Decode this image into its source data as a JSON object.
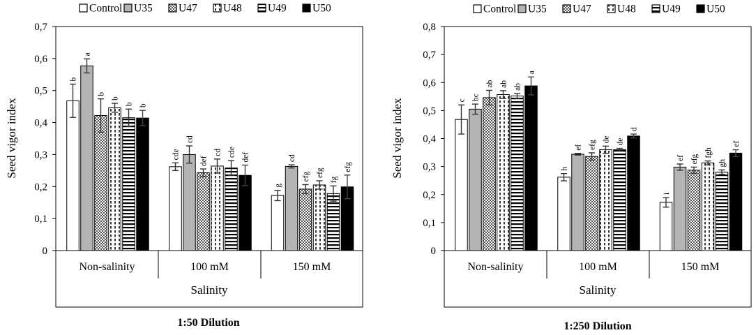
{
  "colors": {
    "Control": "#ffffff",
    "U35": "#b4b4b4",
    "U47": "#7a7a7a",
    "U48": "#ffffff",
    "U49": "#ffffff",
    "U50": "#000000"
  },
  "chart_data": [
    {
      "type": "bar",
      "title": "1:50 Dilution",
      "xlabel": "Salinity",
      "ylabel": "Seed vigor index",
      "ylim": [
        0,
        0.7
      ],
      "yticks": [
        "0",
        "0,1",
        "0,2",
        "0,3",
        "0,4",
        "0,5",
        "0,6",
        "0,7"
      ],
      "categories": [
        "Non-salinity",
        "100 mM",
        "150  mM"
      ],
      "legend": [
        "Control",
        "U35",
        "U47",
        "U48",
        "U49",
        "U50"
      ],
      "series": [
        {
          "name": "Control",
          "values": [
            0.468,
            0.262,
            0.172
          ],
          "errors": [
            0.052,
            0.012,
            0.016
          ],
          "letters": [
            "b",
            "cde",
            "g"
          ]
        },
        {
          "name": "U35",
          "values": [
            0.577,
            0.3,
            0.263
          ],
          "errors": [
            0.022,
            0.027,
            0.005
          ],
          "letters": [
            "a",
            "cd",
            "cd"
          ]
        },
        {
          "name": "U47",
          "values": [
            0.422,
            0.243,
            0.192
          ],
          "errors": [
            0.052,
            0.012,
            0.014
          ],
          "letters": [
            "b",
            "def",
            "efg"
          ]
        },
        {
          "name": "U48",
          "values": [
            0.446,
            0.264,
            0.205
          ],
          "errors": [
            0.014,
            0.022,
            0.013
          ],
          "letters": [
            "b",
            "cd",
            "efg"
          ]
        },
        {
          "name": "U49",
          "values": [
            0.415,
            0.258,
            0.178
          ],
          "errors": [
            0.027,
            0.023,
            0.024
          ],
          "letters": [
            "b",
            "cde",
            "fg"
          ]
        },
        {
          "name": "U50",
          "values": [
            0.414,
            0.235,
            0.199
          ],
          "errors": [
            0.024,
            0.032,
            0.037
          ],
          "letters": [
            "b",
            "def",
            "efg"
          ]
        }
      ]
    },
    {
      "type": "bar",
      "title": "1:250 Dilution",
      "xlabel": "Salinity",
      "ylabel": "Seed vigor index",
      "ylim": [
        0,
        0.8
      ],
      "yticks": [
        "0",
        "0,1",
        "0,2",
        "0,3",
        "0,4",
        "0,5",
        "0,6",
        "0,7",
        "0,8"
      ],
      "categories": [
        "Non-salinity",
        "100 mM",
        "150  mM"
      ],
      "legend": [
        "Control",
        "U35",
        "U47",
        "U48",
        "U49",
        "U50"
      ],
      "series": [
        {
          "name": "Control",
          "values": [
            0.468,
            0.262,
            0.172
          ],
          "errors": [
            0.052,
            0.013,
            0.017
          ],
          "letters": [
            "c",
            "h",
            "i"
          ]
        },
        {
          "name": "U35",
          "values": [
            0.505,
            0.344,
            0.298
          ],
          "errors": [
            0.018,
            0.003,
            0.011
          ],
          "letters": [
            "bc",
            "ef",
            "ef"
          ]
        },
        {
          "name": "U47",
          "values": [
            0.546,
            0.336,
            0.287
          ],
          "errors": [
            0.026,
            0.013,
            0.011
          ],
          "letters": [
            "ab",
            "efg",
            "efg"
          ]
        },
        {
          "name": "U48",
          "values": [
            0.557,
            0.36,
            0.313
          ],
          "errors": [
            0.014,
            0.013,
            0.007
          ],
          "letters": [
            "ab",
            "de",
            "fgh"
          ]
        },
        {
          "name": "U49",
          "values": [
            0.552,
            0.36,
            0.28
          ],
          "errors": [
            0.009,
            0.005,
            0.008
          ],
          "letters": [
            "ab",
            "de",
            "gh"
          ]
        },
        {
          "name": "U50",
          "values": [
            0.588,
            0.409,
            0.348
          ],
          "errors": [
            0.032,
            0.007,
            0.012
          ],
          "letters": [
            "a",
            "d",
            "ef"
          ]
        }
      ]
    }
  ]
}
